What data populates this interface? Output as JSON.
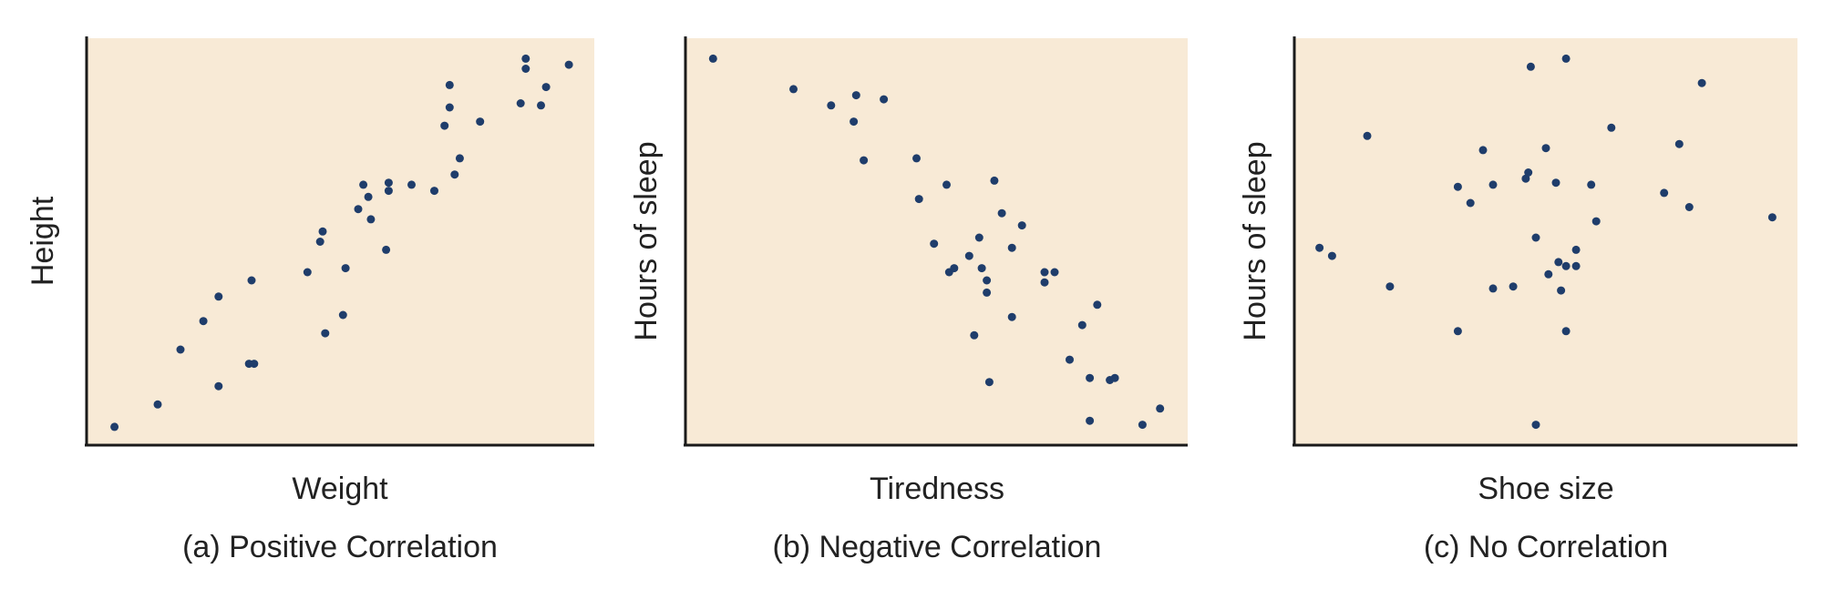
{
  "colors": {
    "plot_background": "#f8ead6",
    "axis": "#1a1a1a",
    "point": "#1f3d6b",
    "text": "#222222"
  },
  "chart_data": [
    {
      "type": "scatter",
      "caption": "(a) Positive Correlation",
      "xlabel": "Weight",
      "ylabel": "Height",
      "xlim": [
        0,
        100
      ],
      "ylim": [
        0,
        100
      ],
      "grid": false,
      "ticks": false,
      "points": [
        {
          "x": 5.5,
          "y": 4.5
        },
        {
          "x": 14,
          "y": 10
        },
        {
          "x": 18.5,
          "y": 23.5
        },
        {
          "x": 23,
          "y": 30.5
        },
        {
          "x": 26,
          "y": 36.5
        },
        {
          "x": 26,
          "y": 14.5
        },
        {
          "x": 32,
          "y": 20
        },
        {
          "x": 33,
          "y": 20
        },
        {
          "x": 32.5,
          "y": 40.5
        },
        {
          "x": 43.5,
          "y": 42.5
        },
        {
          "x": 47,
          "y": 27.5
        },
        {
          "x": 50.5,
          "y": 32
        },
        {
          "x": 46,
          "y": 50
        },
        {
          "x": 46.5,
          "y": 52.5
        },
        {
          "x": 51,
          "y": 43.5
        },
        {
          "x": 53.5,
          "y": 58
        },
        {
          "x": 54.5,
          "y": 64
        },
        {
          "x": 55.5,
          "y": 61
        },
        {
          "x": 56,
          "y": 55.5
        },
        {
          "x": 59,
          "y": 48
        },
        {
          "x": 59.5,
          "y": 62.5
        },
        {
          "x": 59.5,
          "y": 64.5
        },
        {
          "x": 64,
          "y": 64
        },
        {
          "x": 68.5,
          "y": 62.5
        },
        {
          "x": 70.5,
          "y": 78.5
        },
        {
          "x": 71.5,
          "y": 88.5
        },
        {
          "x": 71.5,
          "y": 83
        },
        {
          "x": 72.5,
          "y": 66.5
        },
        {
          "x": 73.5,
          "y": 70.5
        },
        {
          "x": 77.5,
          "y": 79.5
        },
        {
          "x": 85.5,
          "y": 84
        },
        {
          "x": 86.5,
          "y": 95
        },
        {
          "x": 86.5,
          "y": 92.5
        },
        {
          "x": 89.5,
          "y": 83.5
        },
        {
          "x": 90.5,
          "y": 88
        },
        {
          "x": 95,
          "y": 93.5
        }
      ]
    },
    {
      "type": "scatter",
      "caption": "(b) Negative Correlation",
      "xlabel": "Tiredness",
      "ylabel": "Hours of sleep",
      "xlim": [
        0,
        100
      ],
      "ylim": [
        0,
        100
      ],
      "grid": false,
      "ticks": false,
      "points": [
        {
          "x": 5.5,
          "y": 95
        },
        {
          "x": 21.5,
          "y": 87.5
        },
        {
          "x": 29,
          "y": 83.5
        },
        {
          "x": 33.5,
          "y": 79.5
        },
        {
          "x": 34,
          "y": 86
        },
        {
          "x": 35.5,
          "y": 70
        },
        {
          "x": 39.5,
          "y": 85
        },
        {
          "x": 46,
          "y": 70.5
        },
        {
          "x": 46.5,
          "y": 60.5
        },
        {
          "x": 49.5,
          "y": 49.5
        },
        {
          "x": 52,
          "y": 64
        },
        {
          "x": 52.5,
          "y": 42.5
        },
        {
          "x": 53.5,
          "y": 43.5
        },
        {
          "x": 56.5,
          "y": 46.5
        },
        {
          "x": 57.5,
          "y": 27
        },
        {
          "x": 58.5,
          "y": 51
        },
        {
          "x": 59,
          "y": 43.5
        },
        {
          "x": 60,
          "y": 40.5
        },
        {
          "x": 60,
          "y": 37.5
        },
        {
          "x": 60.5,
          "y": 15.5
        },
        {
          "x": 61.5,
          "y": 65
        },
        {
          "x": 63,
          "y": 57
        },
        {
          "x": 65,
          "y": 31.5
        },
        {
          "x": 65,
          "y": 48.5
        },
        {
          "x": 67,
          "y": 54
        },
        {
          "x": 71.5,
          "y": 40
        },
        {
          "x": 71.5,
          "y": 42.5
        },
        {
          "x": 73.5,
          "y": 42.5
        },
        {
          "x": 76.5,
          "y": 21
        },
        {
          "x": 79,
          "y": 29.5
        },
        {
          "x": 80.5,
          "y": 16.5
        },
        {
          "x": 80.5,
          "y": 6
        },
        {
          "x": 82,
          "y": 34.5
        },
        {
          "x": 84.5,
          "y": 16
        },
        {
          "x": 85.5,
          "y": 16.5
        },
        {
          "x": 91,
          "y": 5
        },
        {
          "x": 94.5,
          "y": 9
        }
      ]
    },
    {
      "type": "scatter",
      "caption": "(c) No Correlation",
      "xlabel": "Shoe size",
      "ylabel": "Hours of sleep",
      "xlim": [
        0,
        100
      ],
      "ylim": [
        0,
        100
      ],
      "grid": false,
      "ticks": false,
      "points": [
        {
          "x": 5,
          "y": 48.5
        },
        {
          "x": 7.5,
          "y": 46.5
        },
        {
          "x": 14.5,
          "y": 76
        },
        {
          "x": 19,
          "y": 39
        },
        {
          "x": 32.5,
          "y": 63.5
        },
        {
          "x": 32.5,
          "y": 28
        },
        {
          "x": 35,
          "y": 59.5
        },
        {
          "x": 37.5,
          "y": 72.5
        },
        {
          "x": 39.5,
          "y": 64
        },
        {
          "x": 39.5,
          "y": 38.5
        },
        {
          "x": 43.5,
          "y": 39
        },
        {
          "x": 46,
          "y": 65.5
        },
        {
          "x": 46.5,
          "y": 67
        },
        {
          "x": 47,
          "y": 93
        },
        {
          "x": 48,
          "y": 51
        },
        {
          "x": 48,
          "y": 5
        },
        {
          "x": 50,
          "y": 73
        },
        {
          "x": 50.5,
          "y": 42
        },
        {
          "x": 52,
          "y": 64.5
        },
        {
          "x": 52.5,
          "y": 45
        },
        {
          "x": 53,
          "y": 38
        },
        {
          "x": 54,
          "y": 44
        },
        {
          "x": 54,
          "y": 28
        },
        {
          "x": 54,
          "y": 95
        },
        {
          "x": 56,
          "y": 44
        },
        {
          "x": 56,
          "y": 48
        },
        {
          "x": 59,
          "y": 64
        },
        {
          "x": 60,
          "y": 55
        },
        {
          "x": 63,
          "y": 78
        },
        {
          "x": 73.5,
          "y": 62
        },
        {
          "x": 76.5,
          "y": 74
        },
        {
          "x": 78.5,
          "y": 58.5
        },
        {
          "x": 81,
          "y": 89
        },
        {
          "x": 95,
          "y": 56
        }
      ]
    }
  ]
}
